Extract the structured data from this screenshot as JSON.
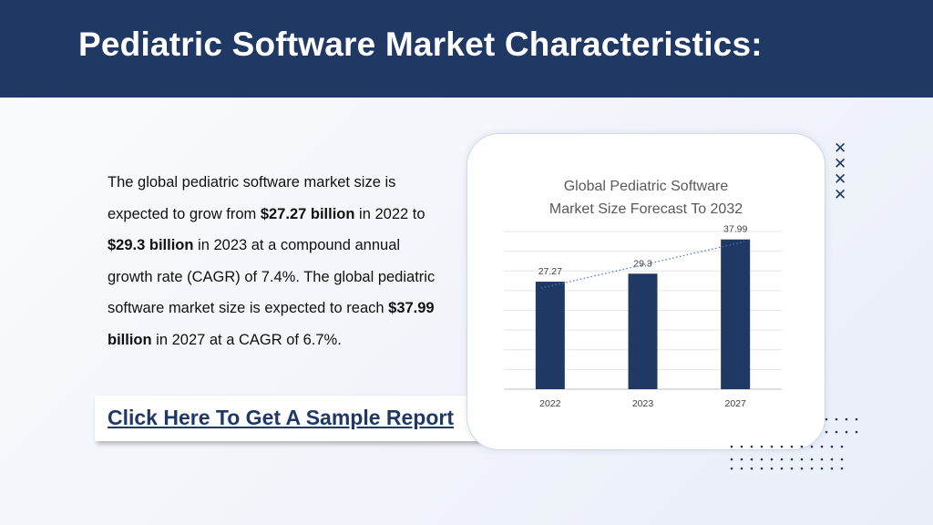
{
  "header": {
    "title": "Pediatric Software Market Characteristics:"
  },
  "body_text": {
    "p1": "The global pediatric software market size is expected to grow from ",
    "v1": "$27.27 billion",
    "p2": " in 2022 to ",
    "v2": "$29.3 billion",
    "p3": " in 2023 at a compound annual growth rate (CAGR) of 7.4%. The global pediatric software market size is expected to reach ",
    "v3": "$37.99 billion",
    "p4": " in 2027 at a CAGR of 6.7%."
  },
  "cta": {
    "label": "Click Here To Get A Sample Report"
  },
  "colors": {
    "primary": "#1f3864",
    "bar": "#1f3864"
  },
  "chart_data": {
    "type": "bar",
    "title_line1": "Global Pediatric Software",
    "title_line2": "Market Size Forecast To 2032",
    "categories": [
      "2022",
      "2023",
      "2027"
    ],
    "values": [
      27.27,
      29.3,
      37.99
    ],
    "value_labels": [
      "27.27",
      "29.3",
      "37.99"
    ],
    "ylim": [
      0,
      40
    ],
    "gridlines": true,
    "trendline": "dotted linear",
    "xlabel": "",
    "ylabel": ""
  }
}
